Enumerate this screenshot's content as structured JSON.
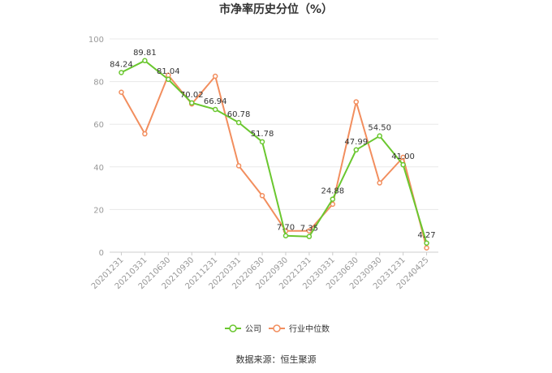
{
  "chart_data": {
    "type": "line",
    "title": "市净率历史分位（%）",
    "categories": [
      "20201231",
      "20210331",
      "20210630",
      "20210930",
      "20211231",
      "20220331",
      "20220630",
      "20220930",
      "20221231",
      "20230331",
      "20230630",
      "20230930",
      "20231231",
      "20240425"
    ],
    "series": [
      {
        "name": "公司",
        "color": "#6ac72f",
        "values": [
          84.24,
          89.81,
          81.04,
          70.02,
          66.94,
          60.78,
          51.78,
          7.7,
          7.35,
          24.88,
          47.99,
          54.5,
          41.0,
          4.27
        ],
        "labels": [
          "84.24",
          "89.81",
          "81.04",
          "70.02",
          "66.94",
          "60.78",
          "51.78",
          "7.70",
          "7.35",
          "24.88",
          "47.99",
          "54.50",
          "41.00",
          "4.27"
        ]
      },
      {
        "name": "行业中位数",
        "color": "#f28e5e",
        "values": [
          75,
          55.5,
          83,
          69.5,
          82.5,
          40.5,
          26.5,
          10,
          10,
          22.5,
          70.5,
          32.5,
          44.5,
          2
        ]
      }
    ],
    "yticks": [
      "0",
      "20",
      "40",
      "60",
      "80",
      "100"
    ],
    "ylim": [
      0,
      100
    ],
    "grid": true,
    "legend_position": "bottom"
  },
  "source": "数据来源：恒生聚源"
}
